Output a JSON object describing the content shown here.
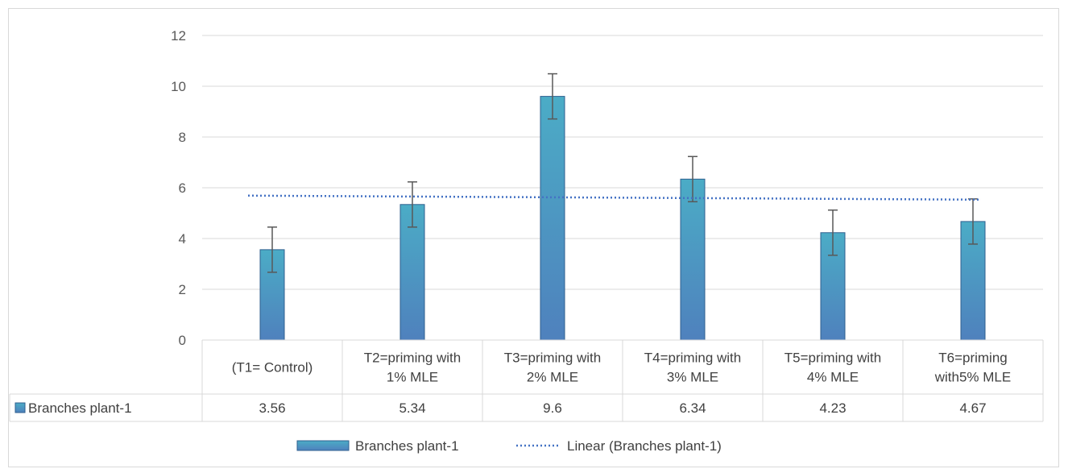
{
  "chart_data": {
    "type": "bar",
    "categories": [
      [
        "(T1= Control)"
      ],
      [
        "T2=priming with",
        "1% MLE"
      ],
      [
        "T3=priming with",
        "2% MLE"
      ],
      [
        "T4=priming with",
        "3% MLE"
      ],
      [
        "T5=priming with",
        "4% MLE"
      ],
      [
        "T6=priming",
        "with5% MLE"
      ]
    ],
    "series": [
      {
        "name": "Branches plant-1",
        "values": [
          3.56,
          5.34,
          9.6,
          6.34,
          4.23,
          4.67
        ],
        "value_labels": [
          "3.56",
          "5.34",
          "9.6",
          "6.34",
          "4.23",
          "4.67"
        ],
        "error": [
          0.89,
          0.89,
          0.89,
          0.89,
          0.89,
          0.89
        ],
        "color_top": "#4bacc6",
        "color_bottom": "#4f81bd"
      }
    ],
    "trendline": {
      "type": "linear",
      "name": "Linear (Branches plant-1)",
      "start": 5.69,
      "end": 5.53,
      "color": "#4472c4"
    },
    "ylim": [
      0,
      12
    ],
    "yticks": [
      "0",
      "2",
      "4",
      "6",
      "8",
      "10",
      "12"
    ],
    "grid": true,
    "legend_position": "bottom",
    "data_table": true
  }
}
